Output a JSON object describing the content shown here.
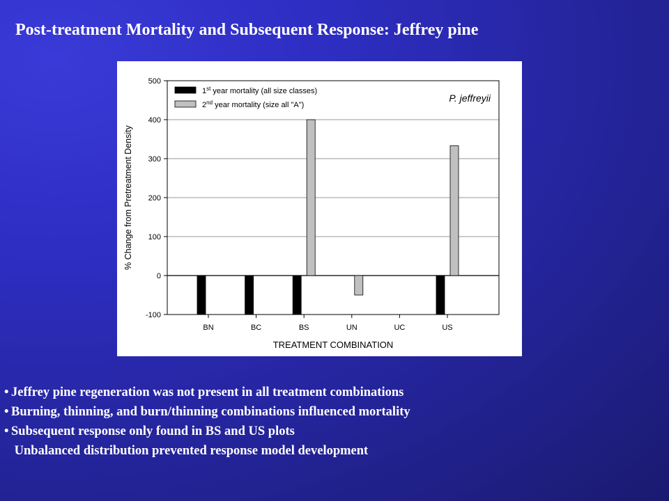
{
  "slide": {
    "title": "Post-treatment Mortality and Subsequent Response: Jeffrey pine",
    "background_color": "#2b2bb8",
    "bullets": [
      {
        "marker": "•",
        "text": "Jeffrey pine regeneration was not present in all treatment combinations"
      },
      {
        "marker": "•",
        "text": "Burning, thinning, and burn/thinning combinations influenced mortality"
      },
      {
        "marker": "•",
        "text": "Subsequent response only found in BS and US plots"
      },
      {
        "marker": "",
        "text": " Unbalanced distribution prevented response model development"
      }
    ]
  },
  "chart_data": {
    "type": "bar",
    "annotation": "P. jeffreyii",
    "xlabel": "TREATMENT COMBINATION",
    "ylabel": "% Change from Pretreatment Density",
    "categories": [
      "BN",
      "BC",
      "BS",
      "UN",
      "UC",
      "US"
    ],
    "ylim": [
      -100,
      500
    ],
    "yticks": [
      -100,
      0,
      100,
      200,
      300,
      400,
      500
    ],
    "grid": true,
    "legend_position": "top-left",
    "series": [
      {
        "name": "1st year mortality (all size classes)",
        "legend_parts": [
          "1",
          "st",
          " year mortality (all size classes)"
        ],
        "color": "#000000",
        "values": [
          -100,
          -100,
          -100,
          null,
          null,
          -100
        ]
      },
      {
        "name": "2nd year mortality (size all \"A\")",
        "legend_parts": [
          "2",
          "nd",
          " year mortality (size all \"A\")"
        ],
        "color": "#c0c0c0",
        "values": [
          null,
          null,
          400,
          -50,
          null,
          333
        ]
      }
    ]
  }
}
